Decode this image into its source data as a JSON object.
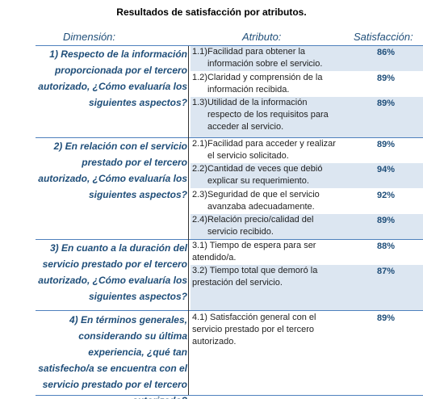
{
  "title": "Resultados de satisfacción por atributos.",
  "headers": {
    "dimension": "Dimensión:",
    "attribute": "Atributo:",
    "satisfaction": "Satisfacción:"
  },
  "dimensions": [
    {
      "text": "1)   Respecto de la información proporcionada por el tercero autorizado, ¿Cómo evaluaría los siguientes aspectos?"
    },
    {
      "text": "2)   En relación con el servicio prestado por el tercero autorizado, ¿Cómo evaluaría los siguientes aspectos?"
    },
    {
      "text": "3)   En cuanto a la duración del servicio prestado por el tercero autorizado, ¿Cómo evaluaría los siguientes aspectos?"
    },
    {
      "text": "4)   En términos generales, considerando su última experiencia, ¿qué tan satisfecho/a se encuentra con el servicio prestado por el tercero autorizado?"
    }
  ],
  "attributes": [
    {
      "num": "1.1)",
      "text": "Facilidad para obtener la información sobre el servicio.",
      "sat": "86%"
    },
    {
      "num": "1.2)",
      "text": "Claridad y comprensión de la información recibida.",
      "sat": "89%"
    },
    {
      "num": "1.3)",
      "text": "Utilidad de la información respecto de los requisitos para acceder al servicio.",
      "sat": "89%"
    },
    {
      "num": "2.1)",
      "text": "Facilidad para acceder y realizar el servicio solicitado.",
      "sat": "89%"
    },
    {
      "num": "2.2)",
      "text": "Cantidad de veces que debió explicar su requerimiento.",
      "sat": "94%"
    },
    {
      "num": "2.3)",
      "text": "Seguridad de que el servicio avanzaba adecuadamente.",
      "sat": "92%"
    },
    {
      "num": "2.4)",
      "text": "Relación precio/calidad del servicio recibido.",
      "sat": "89%"
    },
    {
      "num": "",
      "text": "3.1) Tiempo de espera para ser atendido/a.",
      "sat": "88%"
    },
    {
      "num": "",
      "text": "3.2) Tiempo total que demoró la prestación del servicio.",
      "sat": "87%"
    },
    {
      "num": "",
      "text": "4.1) Satisfacción  general  con el servicio prestado por el tercero autorizado.",
      "sat": "89%"
    }
  ],
  "colors": {
    "header_blue": "#1f4e79",
    "row_shade": "#dce6f1",
    "rule_blue": "#4f81bd"
  }
}
